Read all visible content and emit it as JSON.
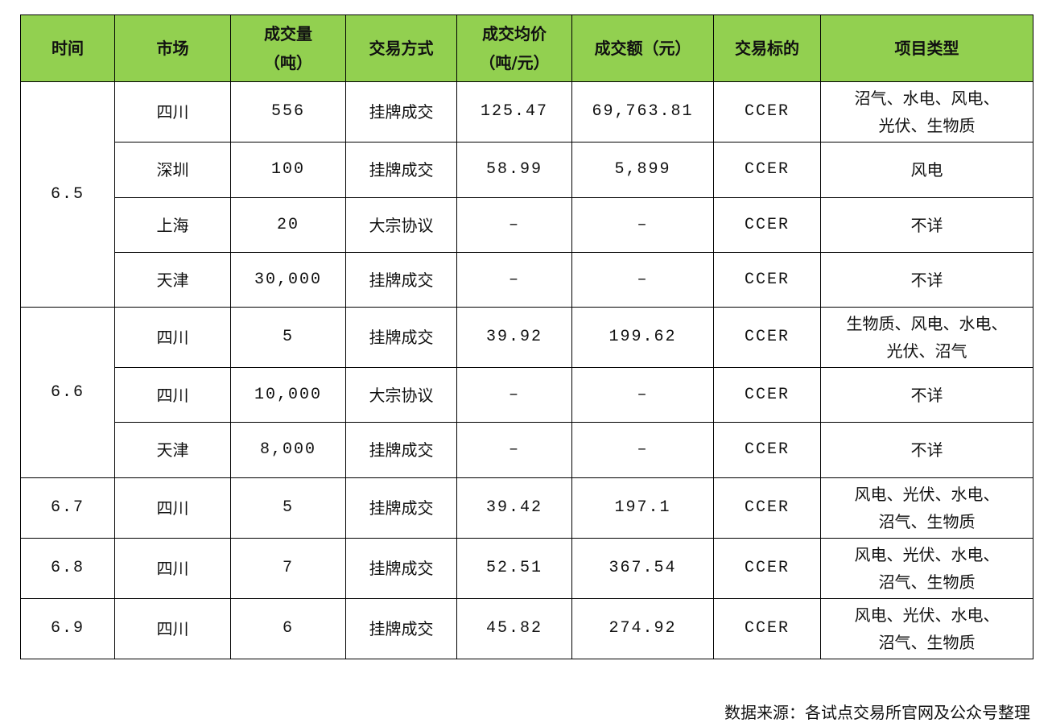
{
  "table": {
    "headers": [
      "时间",
      "市场",
      "成交量\n（吨）",
      "交易方式",
      "成交均价\n（吨/元）",
      "成交额（元）",
      "交易标的",
      "项目类型"
    ],
    "groups": [
      {
        "date": "6.5",
        "rows": [
          [
            "四川",
            "556",
            "挂牌成交",
            "125.47",
            "69,763.81",
            "CCER",
            "沼气、水电、风电、\n光伏、生物质"
          ],
          [
            "深圳",
            "100",
            "挂牌成交",
            "58.99",
            "5,899",
            "CCER",
            "风电"
          ],
          [
            "上海",
            "20",
            "大宗协议",
            "–",
            "–",
            "CCER",
            "不详"
          ],
          [
            "天津",
            "30,000",
            "挂牌成交",
            "–",
            "–",
            "CCER",
            "不详"
          ]
        ]
      },
      {
        "date": "6.6",
        "rows": [
          [
            "四川",
            "5",
            "挂牌成交",
            "39.92",
            "199.62",
            "CCER",
            "生物质、风电、水电、\n光伏、沼气"
          ],
          [
            "四川",
            "10,000",
            "大宗协议",
            "–",
            "–",
            "CCER",
            "不详"
          ],
          [
            "天津",
            "8,000",
            "挂牌成交",
            "–",
            "–",
            "CCER",
            "不详"
          ]
        ]
      },
      {
        "date": "6.7",
        "rows": [
          [
            "四川",
            "5",
            "挂牌成交",
            "39.42",
            "197.1",
            "CCER",
            "风电、光伏、水电、\n沼气、生物质"
          ]
        ]
      },
      {
        "date": "6.8",
        "rows": [
          [
            "四川",
            "7",
            "挂牌成交",
            "52.51",
            "367.54",
            "CCER",
            "风电、光伏、水电、\n沼气、生物质"
          ]
        ]
      },
      {
        "date": "6.9",
        "rows": [
          [
            "四川",
            "6",
            "挂牌成交",
            "45.82",
            "274.92",
            "CCER",
            "风电、光伏、水电、\n沼气、生物质"
          ]
        ]
      }
    ]
  },
  "footer": {
    "source": "数据来源：各试点交易所官网及公众号整理"
  },
  "colors": {
    "header_bg": "#92d050"
  }
}
